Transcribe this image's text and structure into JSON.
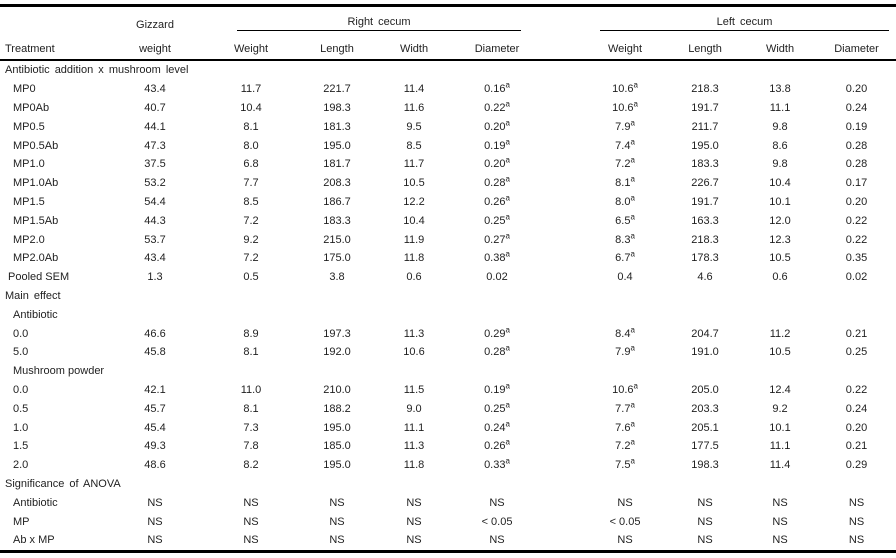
{
  "table": {
    "header": {
      "treatment": "Treatment",
      "gizzard_top": "Gizzard",
      "gizzard_bottom": "weight",
      "right_cecum": "Right cecum",
      "left_cecum": "Left cecum",
      "sub_columns": [
        "Weight",
        "Length",
        "Width",
        "Diameter"
      ]
    },
    "columns": [
      "Gizzard weight",
      "Right cecum Weight",
      "Right cecum Length",
      "Right cecum Width",
      "Right cecum Diameter",
      "Left cecum Weight",
      "Left cecum Length",
      "Left cecum Width",
      "Left cecum Diameter"
    ],
    "rows": [
      {
        "label": "Antibiotic addition x mushroom level",
        "type": "section",
        "values": []
      },
      {
        "label": "MP0",
        "type": "data",
        "values": [
          "43.4",
          "11.7",
          "221.7",
          "11.4",
          "0.16^a",
          "10.6^a",
          "218.3",
          "13.8",
          "0.20"
        ]
      },
      {
        "label": "MP0Ab",
        "type": "data",
        "values": [
          "40.7",
          "10.4",
          "198.3",
          "11.6",
          "0.22^a",
          "10.6^a",
          "191.7",
          "11.1",
          "0.24"
        ]
      },
      {
        "label": "MP0.5",
        "type": "data",
        "values": [
          "44.1",
          "8.1",
          "181.3",
          "9.5",
          "0.20^a",
          "7.9^a",
          "211.7",
          "9.8",
          "0.19"
        ]
      },
      {
        "label": "MP0.5Ab",
        "type": "data",
        "values": [
          "47.3",
          "8.0",
          "195.0",
          "8.5",
          "0.19^a",
          "7.4^a",
          "195.0",
          "8.6",
          "0.28"
        ]
      },
      {
        "label": "MP1.0",
        "type": "data",
        "values": [
          "37.5",
          "6.8",
          "181.7",
          "11.7",
          "0.20^a",
          "7.2^a",
          "183.3",
          "9.8",
          "0.28"
        ]
      },
      {
        "label": "MP1.0Ab",
        "type": "data",
        "values": [
          "53.2",
          "7.7",
          "208.3",
          "10.5",
          "0.28^a",
          "8.1^a",
          "226.7",
          "10.4",
          "0.17"
        ]
      },
      {
        "label": "MP1.5",
        "type": "data",
        "values": [
          "54.4",
          "8.5",
          "186.7",
          "12.2",
          "0.26^a",
          "8.0^a",
          "191.7",
          "10.1",
          "0.20"
        ]
      },
      {
        "label": "MP1.5Ab",
        "type": "data",
        "values": [
          "44.3",
          "7.2",
          "183.3",
          "10.4",
          "0.25^a",
          "6.5^a",
          "163.3",
          "12.0",
          "0.22"
        ]
      },
      {
        "label": "MP2.0",
        "type": "data",
        "values": [
          "53.7",
          "9.2",
          "215.0",
          "11.9",
          "0.27^a",
          "8.3^a",
          "218.3",
          "12.3",
          "0.22"
        ]
      },
      {
        "label": "MP2.0Ab",
        "type": "data",
        "values": [
          "43.4",
          "7.2",
          "175.0",
          "11.8",
          "0.38^a",
          "6.7^a",
          "178.3",
          "10.5",
          "0.35"
        ]
      },
      {
        "label": "Pooled SEM",
        "type": "data",
        "small_indent": true,
        "values": [
          "1.3",
          "0.5",
          "3.8",
          "0.6",
          "0.02",
          "0.4",
          "4.6",
          "0.6",
          "0.02"
        ]
      },
      {
        "label": "Main effect",
        "type": "section",
        "values": []
      },
      {
        "label": "Antibiotic",
        "type": "sub",
        "values": []
      },
      {
        "label": "0.0",
        "type": "data",
        "values": [
          "46.6",
          "8.9",
          "197.3",
          "11.3",
          "0.29^a",
          "8.4^a",
          "204.7",
          "11.2",
          "0.21"
        ]
      },
      {
        "label": "5.0",
        "type": "data",
        "values": [
          "45.8",
          "8.1",
          "192.0",
          "10.6",
          "0.28^a",
          "7.9^a",
          "191.0",
          "10.5",
          "0.25"
        ]
      },
      {
        "label": "Mushroom powder",
        "type": "sub",
        "values": []
      },
      {
        "label": "0.0",
        "type": "data",
        "values": [
          "42.1",
          "11.0",
          "210.0",
          "11.5",
          "0.19^a",
          "10.6^a",
          "205.0",
          "12.4",
          "0.22"
        ]
      },
      {
        "label": "0.5",
        "type": "data",
        "values": [
          "45.7",
          "8.1",
          "188.2",
          "9.0",
          "0.25^a",
          "7.7^a",
          "203.3",
          "9.2",
          "0.24"
        ]
      },
      {
        "label": "1.0",
        "type": "data",
        "values": [
          "45.4",
          "7.3",
          "195.0",
          "11.1",
          "0.24^a",
          "7.6^a",
          "205.1",
          "10.1",
          "0.20"
        ]
      },
      {
        "label": "1.5",
        "type": "data",
        "values": [
          "49.3",
          "7.8",
          "185.0",
          "11.3",
          "0.26^a",
          "7.2^a",
          "177.5",
          "11.1",
          "0.21"
        ]
      },
      {
        "label": "2.0",
        "type": "data",
        "values": [
          "48.6",
          "8.2",
          "195.0",
          "11.8",
          "0.33^a",
          "7.5^a",
          "198.3",
          "11.4",
          "0.29"
        ]
      },
      {
        "label": "Significance of ANOVA",
        "type": "section",
        "values": []
      },
      {
        "label": "Antibiotic",
        "type": "data",
        "values": [
          "NS",
          "NS",
          "NS",
          "NS",
          "NS",
          "NS",
          "NS",
          "NS",
          "NS"
        ]
      },
      {
        "label": "MP",
        "type": "data",
        "values": [
          "NS",
          "NS",
          "NS",
          "NS",
          "< 0.05",
          "< 0.05",
          "NS",
          "NS",
          "NS"
        ]
      },
      {
        "label": "Ab x MP",
        "type": "data",
        "values": [
          "NS",
          "NS",
          "NS",
          "NS",
          "NS",
          "NS",
          "NS",
          "NS",
          "NS"
        ]
      }
    ]
  },
  "colors": {
    "text": "#1f1f1f",
    "rule": "#000000",
    "background": "#ffffff"
  }
}
